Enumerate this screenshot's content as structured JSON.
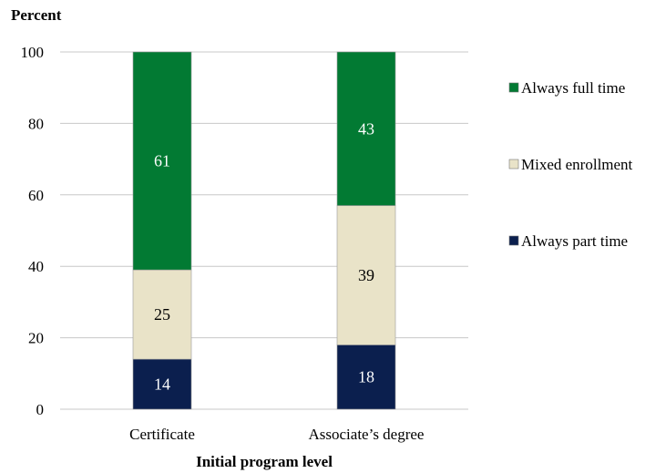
{
  "chart_data": {
    "type": "bar",
    "stacked": true,
    "ylabel": "Percent",
    "xlabel": "Initial program level",
    "categories": [
      "Certificate",
      "Associate’s degree"
    ],
    "ylim": [
      0,
      100
    ],
    "yticks": [
      0,
      20,
      40,
      60,
      80,
      100
    ],
    "grid": true,
    "legend_position": "right",
    "series": [
      {
        "name": "Always part time",
        "values": [
          14,
          18
        ],
        "color": "#0b1f4e",
        "label_color": "#ffffff"
      },
      {
        "name": "Mixed enrollment",
        "values": [
          25,
          39
        ],
        "color": "#e9e3c8",
        "label_color": "#000000"
      },
      {
        "name": "Always full time",
        "values": [
          61,
          43
        ],
        "color": "#027a33",
        "label_color": "#ffffff"
      }
    ]
  }
}
